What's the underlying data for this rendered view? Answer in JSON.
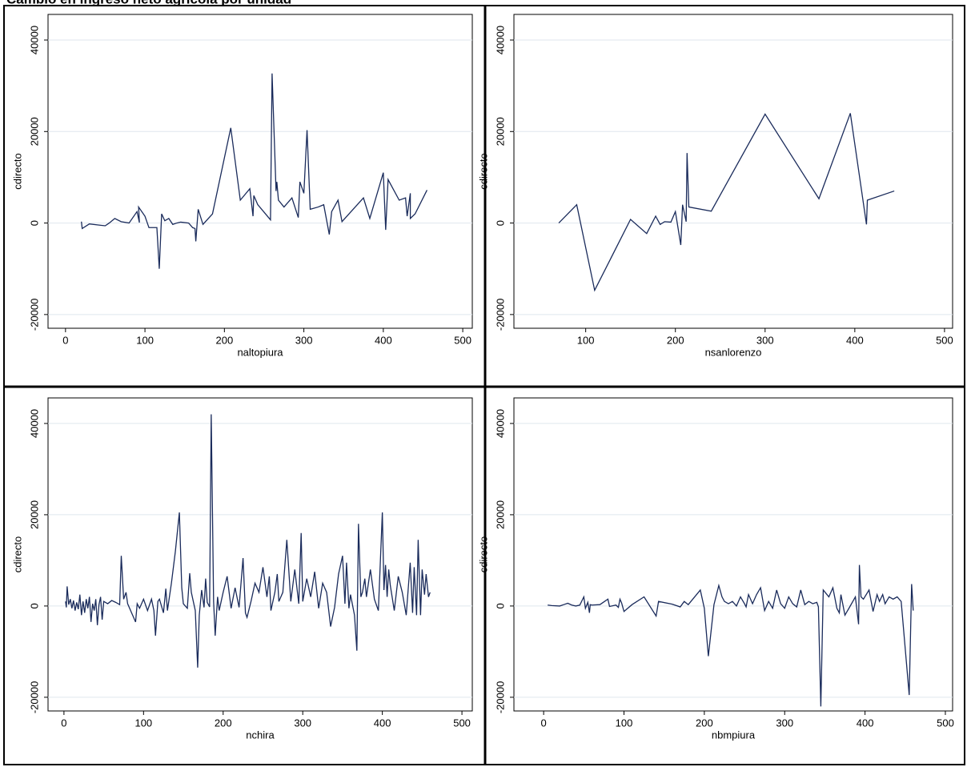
{
  "chart_data": [
    {
      "type": "line",
      "title": "Cambio en ingreso neto agrícola por unidad",
      "x_label": "naltopiura",
      "y_label": "cdirecto",
      "color": "#1a2b5b",
      "grid": true,
      "xlim": [
        -22,
        512
      ],
      "ylim": [
        -23000,
        45600
      ],
      "xticks": [
        0,
        100,
        200,
        300,
        400,
        500
      ],
      "yticks": [
        -20000,
        0,
        20000,
        40000
      ],
      "x": [
        20,
        21,
        30,
        50,
        55,
        62,
        70,
        80,
        90,
        93,
        92,
        100,
        105,
        115,
        118,
        121,
        125,
        130,
        135,
        140,
        145,
        155,
        160,
        163,
        164,
        167,
        173,
        185,
        208,
        220,
        232,
        236,
        237,
        242,
        258,
        260,
        265,
        266,
        268,
        275,
        285,
        293,
        295,
        300,
        304,
        308,
        318,
        325,
        332,
        335,
        343,
        348,
        375,
        383,
        400,
        403,
        406,
        420,
        428,
        430,
        434,
        434,
        440,
        455
      ],
      "values": [
        300,
        -1200,
        -200,
        -600,
        0,
        1000,
        300,
        0,
        2500,
        100,
        3500,
        1500,
        -1000,
        -1000,
        -10000,
        2000,
        500,
        1000,
        -300,
        0,
        200,
        0,
        -1000,
        -1200,
        -4000,
        3000,
        -300,
        2000,
        20800,
        5000,
        7500,
        1500,
        6000,
        4000,
        700,
        32700,
        7000,
        9000,
        5000,
        3500,
        5500,
        1200,
        9000,
        6500,
        20300,
        3000,
        3500,
        4000,
        -2500,
        2500,
        5000,
        300,
        5500,
        1000,
        11000,
        -1500,
        9500,
        5000,
        5500,
        1500,
        6500,
        1000,
        2000,
        7200
      ]
    },
    {
      "type": "line",
      "x_label": "nsanlorenzo",
      "y_label": "cdirecto",
      "color": "#1a2b5b",
      "grid": true,
      "xlim": [
        20,
        509
      ],
      "ylim": [
        -23000,
        45600
      ],
      "xticks": [
        100,
        200,
        300,
        400,
        500
      ],
      "yticks": [
        -20000,
        0,
        20000,
        40000
      ],
      "x": [
        70,
        90,
        110,
        150,
        168,
        178,
        183,
        188,
        195,
        200,
        206,
        208,
        212,
        213,
        215,
        240,
        300,
        360,
        395,
        413,
        414,
        444
      ],
      "values": [
        0,
        4000,
        -14700,
        800,
        -2300,
        1500,
        -300,
        300,
        200,
        2500,
        -4800,
        4000,
        300,
        15300,
        3500,
        2600,
        23800,
        5300,
        24000,
        -300,
        5000,
        7000
      ]
    },
    {
      "type": "line",
      "x_label": "nchira",
      "y_label": "cdirecto",
      "color": "#1a2b5b",
      "grid": true,
      "xlim": [
        -20,
        513
      ],
      "ylim": [
        -23000,
        45600
      ],
      "xticks": [
        0,
        100,
        200,
        300,
        400,
        500
      ],
      "yticks": [
        -20000,
        0,
        20000,
        40000
      ],
      "x": [
        2,
        3,
        4,
        6,
        8,
        10,
        12,
        14,
        16,
        18,
        20,
        22,
        24,
        26,
        28,
        30,
        32,
        34,
        36,
        38,
        40,
        42,
        44,
        46,
        48,
        50,
        55,
        60,
        65,
        70,
        72,
        75,
        78,
        80,
        85,
        90,
        92,
        95,
        100,
        105,
        110,
        113,
        115,
        118,
        120,
        125,
        128,
        130,
        135,
        140,
        145,
        148,
        150,
        155,
        158,
        160,
        165,
        168,
        170,
        173,
        176,
        178,
        180,
        183,
        185,
        188,
        190,
        193,
        195,
        200,
        205,
        210,
        215,
        220,
        225,
        228,
        230,
        235,
        240,
        245,
        250,
        255,
        258,
        260,
        265,
        268,
        270,
        275,
        280,
        285,
        290,
        295,
        298,
        300,
        305,
        310,
        315,
        320,
        325,
        330,
        335,
        340,
        345,
        350,
        353,
        355,
        358,
        360,
        365,
        368,
        370,
        373,
        375,
        378,
        380,
        385,
        390,
        395,
        400,
        402,
        404,
        406,
        408,
        410,
        415,
        420,
        425,
        430,
        435,
        438,
        440,
        443,
        445,
        448,
        450,
        453,
        455,
        458,
        460
      ],
      "values": [
        1000,
        -300,
        4300,
        300,
        1500,
        -500,
        1200,
        -1000,
        800,
        -700,
        2500,
        -2000,
        1000,
        -1500,
        1500,
        -500,
        2000,
        -3500,
        500,
        -1000,
        1500,
        -4200,
        300,
        2000,
        -3000,
        1000,
        500,
        1200,
        800,
        300,
        11000,
        1500,
        3000,
        500,
        -1500,
        -3500,
        500,
        -500,
        1500,
        -1000,
        1500,
        -1000,
        -6500,
        1000,
        1500,
        -1500,
        3800,
        -1000,
        5000,
        12000,
        20500,
        4000,
        500,
        -500,
        7200,
        3000,
        -1000,
        -13500,
        -2000,
        3500,
        -300,
        6000,
        800,
        -200,
        42000,
        1000,
        -6500,
        2000,
        -1000,
        3000,
        6500,
        -500,
        4000,
        -300,
        10500,
        -1500,
        -2500,
        1000,
        5000,
        3000,
        8500,
        2000,
        6500,
        -1000,
        3000,
        7000,
        1000,
        3000,
        14500,
        1000,
        8000,
        500,
        16000,
        1000,
        6000,
        2000,
        7500,
        -500,
        5000,
        3000,
        -4500,
        -300,
        7000,
        11000,
        500,
        9500,
        -500,
        2500,
        -2000,
        -9800,
        18000,
        2000,
        3000,
        6000,
        2000,
        8000,
        1500,
        -1000,
        20500,
        3500,
        9000,
        2000,
        8000,
        4500,
        -1000,
        6500,
        3000,
        -2000,
        9500,
        -1500,
        8500,
        -2000,
        14500,
        -2000,
        8000,
        2500,
        7000,
        2000,
        3000
      ]
    },
    {
      "type": "line",
      "x_label": "nbmpiura",
      "y_label": "cdirecto",
      "color": "#1a2b5b",
      "grid": true,
      "xlim": [
        -37,
        509
      ],
      "ylim": [
        -23000,
        45600
      ],
      "xticks": [
        0,
        100,
        200,
        300,
        400,
        500
      ],
      "yticks": [
        -20000,
        0,
        20000,
        40000
      ],
      "x": [
        5,
        10,
        20,
        25,
        30,
        35,
        40,
        45,
        50,
        52,
        55,
        57,
        58,
        60,
        70,
        80,
        82,
        90,
        93,
        95,
        97,
        100,
        110,
        125,
        140,
        143,
        160,
        170,
        175,
        180,
        195,
        200,
        205,
        212,
        218,
        222,
        225,
        230,
        235,
        240,
        245,
        250,
        252,
        255,
        260,
        265,
        270,
        275,
        280,
        285,
        290,
        295,
        300,
        305,
        310,
        315,
        320,
        325,
        330,
        335,
        340,
        342,
        345,
        348,
        355,
        360,
        365,
        368,
        370,
        375,
        380,
        388,
        392,
        393,
        395,
        398,
        405,
        410,
        415,
        418,
        422,
        425,
        430,
        435,
        440,
        445,
        455,
        458,
        460
      ],
      "values": [
        200,
        100,
        0,
        300,
        600,
        200,
        0,
        200,
        2000,
        -500,
        800,
        -1500,
        300,
        200,
        300,
        1500,
        -100,
        200,
        -300,
        1500,
        700,
        -1200,
        300,
        2000,
        -2200,
        1000,
        400,
        -200,
        1000,
        300,
        3500,
        -500,
        -11000,
        300,
        4500,
        2000,
        1000,
        500,
        1000,
        0,
        2000,
        500,
        -200,
        2500,
        500,
        2500,
        4000,
        -1000,
        1000,
        -500,
        3500,
        500,
        -500,
        2000,
        500,
        -200,
        3500,
        300,
        1000,
        500,
        800,
        -200,
        -22000,
        3500,
        2000,
        4000,
        -500,
        -1500,
        2500,
        -2000,
        -500,
        2000,
        -4000,
        9000,
        2000,
        1500,
        3500,
        -1200,
        2500,
        1000,
        2500,
        500,
        2000,
        1500,
        2000,
        1000,
        -19500,
        4800,
        -1000
      ]
    }
  ]
}
